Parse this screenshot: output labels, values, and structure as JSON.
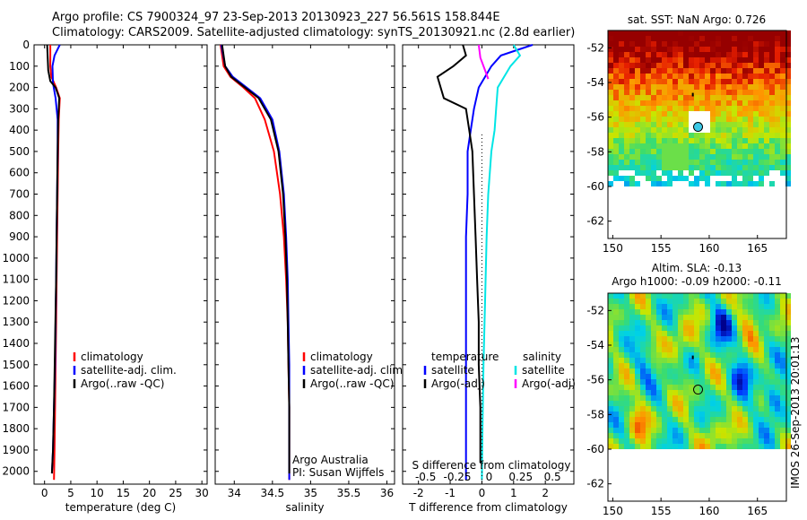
{
  "header": {
    "line1": "Argo profile: CS 7900324_97 23-Sep-2013 20130923_227 56.561S 158.844E",
    "line2": "Climatology: CARS2009. Satellite-adjusted climatology: synTS_20130921.nc (2.8d earlier)"
  },
  "side_stamp": "IMOS 26-Sep-2013 20:01:13",
  "colors": {
    "climatology": "#ff0000",
    "satellite": "#0000ff",
    "argo": "#000000",
    "sat_salinity": "#00e5e5",
    "argo_salinity_adj": "#ff00ff"
  },
  "chart_data": [
    {
      "type": "line",
      "title": "",
      "xlabel": "temperature (deg C)",
      "ylabel": "",
      "xlim": [
        -2,
        31
      ],
      "ylim": [
        2060,
        0
      ],
      "y_reversed": true,
      "xticks": [
        0,
        5,
        10,
        15,
        20,
        25,
        30
      ],
      "yticks": [
        0,
        100,
        200,
        300,
        400,
        500,
        600,
        700,
        800,
        900,
        1000,
        1100,
        1200,
        1300,
        1400,
        1500,
        1600,
        1700,
        1800,
        1900,
        2000
      ],
      "ytick_labels": [
        "0",
        "100",
        "200",
        "300",
        "400",
        "500",
        "600",
        "700",
        "800",
        "900",
        "1000",
        "1100",
        "1200",
        "1300",
        "1400",
        "1500",
        "1600",
        "1700",
        "1800",
        "1900",
        "2000"
      ],
      "legend": {
        "placement": "center",
        "entries": [
          "climatology",
          "satellite-adj. clim.",
          "Argo(..raw -QC)"
        ]
      },
      "series": [
        {
          "name": "climatology",
          "color": "#ff0000",
          "x": [
            1.1,
            1.1,
            1.3,
            2.2,
            2.9,
            2.7,
            2.6,
            2.5,
            2.4,
            2.3,
            2.2,
            2.1,
            2.0,
            1.9,
            1.8
          ],
          "depth": [
            0,
            100,
            150,
            200,
            250,
            350,
            500,
            700,
            900,
            1100,
            1300,
            1500,
            1700,
            1900,
            2040
          ]
        },
        {
          "name": "satellite-adj. clim.",
          "color": "#0000ff",
          "x": [
            2.9,
            1.9,
            1.5,
            1.6,
            2.1,
            2.5,
            2.5,
            2.4,
            2.3,
            2.2,
            2.1,
            2.0,
            1.8,
            1.6,
            1.4
          ],
          "depth": [
            0,
            50,
            100,
            180,
            250,
            350,
            500,
            700,
            900,
            1100,
            1300,
            1500,
            1700,
            1900,
            2010
          ]
        },
        {
          "name": "Argo(..raw -QC)",
          "color": "#000000",
          "x": [
            0.5,
            0.6,
            0.7,
            1.1,
            2.1,
            2.8,
            2.6,
            2.5,
            2.4,
            2.3,
            2.2,
            2.0,
            1.8,
            1.6,
            1.4
          ],
          "depth": [
            0,
            60,
            120,
            170,
            200,
            250,
            350,
            500,
            700,
            900,
            1100,
            1400,
            1700,
            1900,
            2010
          ]
        }
      ]
    },
    {
      "type": "line",
      "title": "",
      "xlabel": "salinity",
      "ylabel": "",
      "xlim": [
        33.75,
        36.1
      ],
      "ylim": [
        2060,
        0
      ],
      "y_reversed": true,
      "xticks": [
        34,
        34.5,
        35,
        35.5,
        36
      ],
      "xtick_labels": [
        "34",
        "34.5",
        "35",
        "35.5",
        "36"
      ],
      "legend": {
        "placement": "center",
        "entries": [
          "climatology",
          "satellite-adj. clim.",
          "Argo(..raw -QC)"
        ]
      },
      "annotations": [
        "Argo Australia",
        "PI: Susan Wijffels"
      ],
      "series": [
        {
          "name": "climatology",
          "color": "#ff0000",
          "x": [
            33.82,
            33.86,
            33.95,
            34.12,
            34.27,
            34.4,
            34.52,
            34.6,
            34.65,
            34.68,
            34.7,
            34.71,
            34.72,
            34.72,
            34.72
          ],
          "depth": [
            0,
            100,
            150,
            200,
            250,
            350,
            500,
            700,
            900,
            1100,
            1300,
            1500,
            1700,
            1900,
            2040
          ]
        },
        {
          "name": "satellite-adj. clim.",
          "color": "#0000ff",
          "x": [
            33.83,
            33.88,
            33.98,
            34.16,
            34.34,
            34.5,
            34.59,
            34.65,
            34.68,
            34.7,
            34.71,
            34.72,
            34.72,
            34.72,
            34.72
          ],
          "depth": [
            0,
            100,
            150,
            200,
            250,
            350,
            500,
            700,
            900,
            1100,
            1300,
            1500,
            1700,
            1900,
            2040
          ]
        },
        {
          "name": "Argo(..raw -QC)",
          "color": "#000000",
          "x": [
            33.84,
            33.88,
            33.96,
            34.14,
            34.32,
            34.48,
            34.58,
            34.64,
            34.67,
            34.69,
            34.7,
            34.71,
            34.72,
            34.72
          ],
          "depth": [
            0,
            100,
            150,
            200,
            250,
            350,
            500,
            700,
            900,
            1100,
            1300,
            1500,
            1700,
            2010
          ]
        }
      ]
    },
    {
      "type": "line",
      "title": "",
      "xlabel": "T difference from climatology",
      "top_label": "S difference from climatology",
      "xlim": [
        -2.5,
        2.9
      ],
      "ylim": [
        2060,
        0
      ],
      "y_reversed": true,
      "xticks": [
        -2,
        -1,
        0,
        1,
        2
      ],
      "xtick_labels": [
        "-2",
        "-1",
        "0",
        "1",
        "2"
      ],
      "s_xtick_labels": [
        "-0.5",
        "-0.25",
        "0",
        "0.25",
        "0.5"
      ],
      "legend": {
        "placement": "center",
        "left_header": "temperature",
        "right_header": "salinity",
        "entries": [
          "satellite",
          "Argo(-adj)",
          "satellite",
          "Argo(-adj)"
        ]
      },
      "series": [
        {
          "name": "satellite",
          "color": "#0000ff",
          "x": [
            1.6,
            0.6,
            0.3,
            -0.1,
            -0.25,
            -0.35,
            -0.45,
            -0.45,
            -0.5,
            -0.5,
            -0.5,
            -0.5,
            -0.5,
            -0.5,
            -0.5
          ],
          "depth": [
            0,
            50,
            100,
            200,
            300,
            400,
            500,
            700,
            900,
            1100,
            1300,
            1500,
            1700,
            1900,
            2040
          ]
        },
        {
          "name": "Argo(-adj)",
          "color": "#000000",
          "x": [
            -0.6,
            -0.5,
            -0.9,
            -1.4,
            -1.2,
            -0.5,
            -0.4,
            -0.3,
            -0.25,
            -0.2,
            -0.15,
            -0.1,
            -0.1,
            -0.05,
            -0.05
          ],
          "depth": [
            0,
            50,
            100,
            150,
            250,
            300,
            400,
            500,
            700,
            900,
            1100,
            1300,
            1500,
            1700,
            1960
          ]
        },
        {
          "name": "satellite",
          "color": "#00e5e5",
          "x": [
            1.0,
            1.2,
            0.9,
            0.5,
            0.45,
            0.4,
            0.3,
            0.2,
            0.15,
            0.1,
            0.05,
            0.02,
            0.0
          ],
          "depth": [
            0,
            50,
            100,
            200,
            300,
            400,
            500,
            700,
            900,
            1200,
            1500,
            1800,
            2040
          ]
        },
        {
          "name": "Argo(-adj)",
          "color": "#ff00ff",
          "x": [
            -0.1,
            -0.05,
            0.1,
            0.2
          ],
          "depth": [
            0,
            60,
            120,
            160
          ]
        }
      ]
    },
    {
      "type": "heatmap",
      "title": "sat. SST: NaN Argo: 0.726",
      "xlim": [
        149.5,
        168
      ],
      "ylim": [
        -63,
        -51
      ],
      "xticks": [
        150,
        155,
        160,
        165
      ],
      "yticks": [
        -52,
        -54,
        -56,
        -58,
        -60,
        -62
      ],
      "argo_marker": {
        "lon": 158.844,
        "lat": -56.561
      }
    },
    {
      "type": "heatmap",
      "title": "Altim. SLA: -0.13",
      "subtitle": "Argo h1000: -0.09 h2000: -0.11",
      "xlim": [
        149.5,
        168
      ],
      "ylim": [
        -63,
        -51
      ],
      "xticks": [
        150,
        155,
        160,
        165
      ],
      "yticks": [
        -52,
        -54,
        -56,
        -58,
        -60,
        -62
      ],
      "argo_marker": {
        "lon": 158.844,
        "lat": -56.561
      }
    }
  ]
}
